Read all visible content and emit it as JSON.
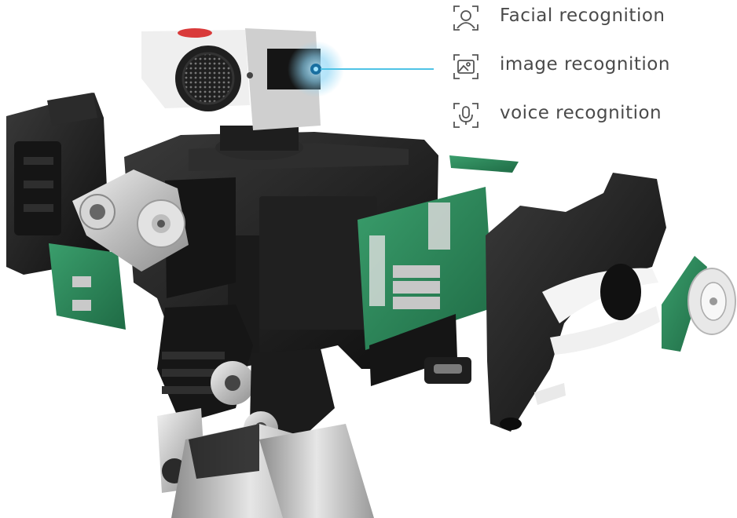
{
  "features": [
    {
      "label": "Facial recognition",
      "icon": "face-scan-icon"
    },
    {
      "label": "image recognition",
      "icon": "image-scan-icon"
    },
    {
      "label": "voice recognition",
      "icon": "microphone-scan-icon"
    }
  ],
  "colors": {
    "callout_line": "#4fc3e6",
    "icon_stroke": "#555555",
    "label_text": "#4a4a4a",
    "pcb_green": "#2d8a5a",
    "body_black": "#1c1c1c",
    "metal": "#c8c8c8"
  }
}
